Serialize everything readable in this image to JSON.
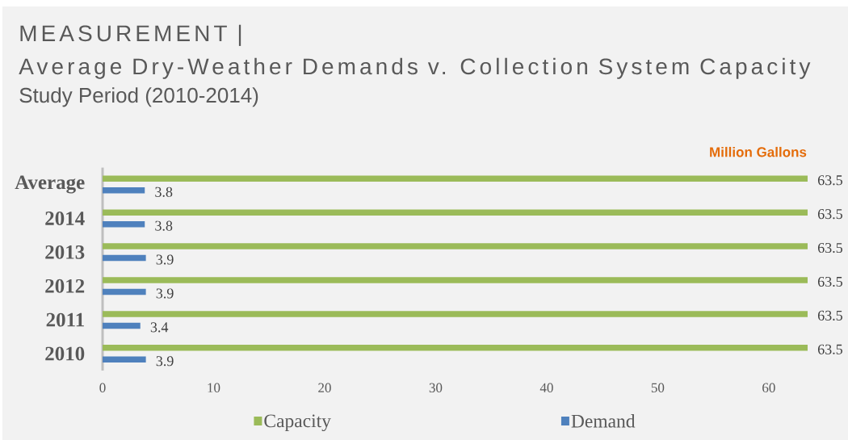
{
  "chart_data": {
    "type": "bar",
    "orientation": "horizontal",
    "title": "MEASUREMENT |",
    "subtitle": "Average Dry-Weather Demands v. Collection System Capacity",
    "annotations": [
      "Study Period (2010-2014)"
    ],
    "xlabel": "Million Gallons",
    "categories": [
      "Average",
      "2014",
      "2013",
      "2012",
      "2011",
      "2010"
    ],
    "series": [
      {
        "name": "Capacity",
        "color": "#9bbb59",
        "values": [
          63.5,
          63.5,
          63.5,
          63.5,
          63.5,
          63.5
        ]
      },
      {
        "name": "Demand",
        "color": "#4f81bd",
        "values": [
          3.8,
          3.8,
          3.9,
          3.9,
          3.4,
          3.9
        ]
      }
    ],
    "xlim": [
      0,
      63.5
    ],
    "xticks": [
      0,
      10,
      20,
      30,
      40,
      50,
      60
    ],
    "data_labels": true,
    "legend": "bottom"
  }
}
